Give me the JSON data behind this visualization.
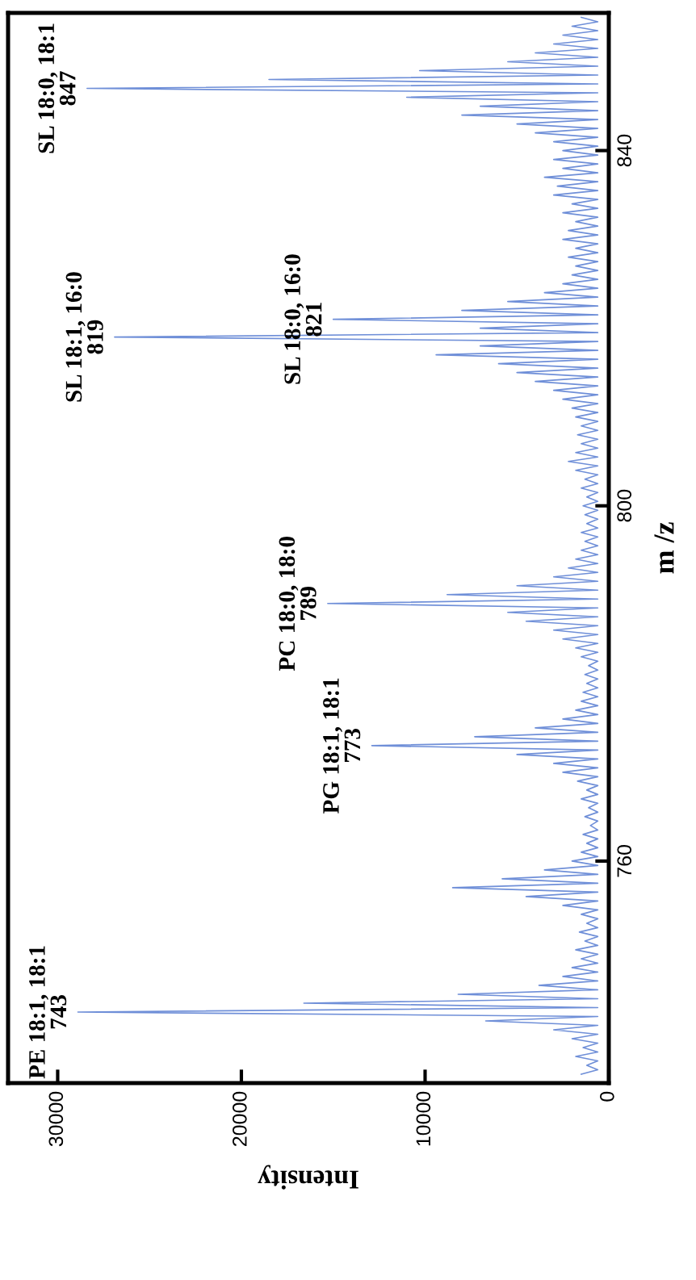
{
  "chart_data": {
    "type": "line",
    "color": "#6f8fd8",
    "xlabel": "Intensity",
    "ylabel": "m /z",
    "xlim": [
      32700,
      0
    ],
    "ylim": [
      735,
      855.5
    ],
    "xticks": [
      0,
      10000,
      20000,
      30000
    ],
    "yticks": [
      760,
      800,
      840
    ],
    "grid": false,
    "values": [
      736,
      736.5,
      737,
      737.5,
      738,
      738.5,
      739,
      739.5,
      740,
      740.5,
      741,
      741.5,
      742,
      742.5,
      743,
      743.5,
      744,
      744.5,
      745,
      745.5,
      746,
      746.5,
      747,
      747.5,
      748,
      748.5,
      749,
      749.5,
      750,
      750.5,
      751,
      751.5,
      752,
      752.5,
      753,
      753.5,
      754,
      754.5,
      755,
      755.5,
      756,
      756.5,
      757,
      757.5,
      758,
      758.5,
      759,
      759.5,
      760,
      760.5,
      761,
      761.5,
      762,
      762.5,
      763,
      763.5,
      764,
      764.5,
      765,
      765.5,
      766,
      766.5,
      767,
      767.5,
      768,
      768.5,
      769,
      769.5,
      770,
      770.5,
      771,
      771.5,
      772,
      772.5,
      773,
      773.5,
      774,
      774.5,
      775,
      775.5,
      776,
      776.5,
      777,
      777.5,
      778,
      778.5,
      779,
      779.5,
      780,
      780.5,
      781,
      781.5,
      782,
      782.5,
      783,
      783.5,
      784,
      784.5,
      785,
      785.5,
      786,
      786.5,
      787,
      787.5,
      788,
      788.5,
      789,
      789.5,
      790,
      790.5,
      791,
      791.5,
      792,
      792.5,
      793,
      793.5,
      794,
      794.5,
      795,
      795.5,
      796,
      796.5,
      797,
      797.5,
      798,
      798.5,
      799,
      799.5,
      800,
      800.5,
      801,
      801.5,
      802,
      802.5,
      803,
      803.5,
      804,
      804.5,
      805,
      805.5,
      806,
      806.5,
      807,
      807.5,
      808,
      808.5,
      809,
      809.5,
      810,
      810.5,
      811,
      811.5,
      812,
      812.5,
      813,
      813.5,
      814,
      814.5,
      815,
      815.5,
      816,
      816.5,
      817,
      817.5,
      818,
      818.5,
      819,
      819.5,
      820,
      820.5,
      821,
      821.5,
      822,
      822.5,
      823,
      823.5,
      824,
      824.5,
      825,
      825.5,
      826,
      826.5,
      827,
      827.5,
      828,
      828.5,
      829,
      829.5,
      830,
      830.5,
      831,
      831.5,
      832,
      832.5,
      833,
      833.5,
      834,
      834.5,
      835,
      835.5,
      836,
      836.5,
      837,
      837.5,
      838,
      838.5,
      839,
      839.5,
      840,
      840.5,
      841,
      841.5,
      842,
      842.5,
      843,
      843.5,
      844,
      844.5,
      845,
      845.5,
      846,
      846.5,
      847,
      847.5,
      848,
      848.5,
      849,
      849.5,
      850,
      850.5,
      851,
      851.5,
      852,
      852.5,
      853,
      853.5,
      854,
      854.5,
      855
    ],
    "x": [
      1500,
      600,
      1200,
      600,
      1800,
      600,
      1400,
      600,
      2000,
      600,
      3000,
      600,
      6700,
      600,
      28900,
      600,
      16600,
      600,
      8200,
      600,
      3800,
      600,
      2500,
      600,
      2000,
      600,
      1500,
      600,
      1800,
      600,
      1300,
      600,
      1600,
      600,
      1200,
      600,
      1500,
      600,
      2500,
      600,
      4500,
      600,
      8500,
      600,
      5800,
      600,
      3500,
      600,
      2000,
      600,
      1500,
      600,
      1200,
      600,
      1400,
      600,
      1000,
      600,
      1300,
      600,
      1100,
      600,
      1500,
      600,
      1200,
      600,
      1700,
      600,
      2500,
      600,
      3000,
      600,
      5000,
      600,
      12900,
      600,
      7300,
      600,
      4000,
      600,
      2500,
      600,
      1800,
      600,
      1500,
      600,
      1400,
      600,
      1200,
      600,
      1300,
      600,
      1100,
      600,
      1500,
      600,
      1800,
      600,
      2500,
      600,
      3000,
      600,
      4500,
      600,
      5500,
      600,
      15300,
      600,
      8800,
      600,
      5000,
      600,
      3000,
      600,
      2200,
      600,
      1800,
      600,
      1500,
      600,
      1300,
      600,
      1500,
      600,
      1200,
      600,
      1300,
      600,
      1400,
      600,
      1200,
      600,
      1500,
      600,
      1300,
      600,
      1800,
      600,
      2200,
      600,
      1800,
      600,
      1500,
      600,
      1700,
      600,
      1500,
      600,
      1800,
      600,
      2000,
      600,
      2500,
      600,
      3000,
      600,
      4000,
      600,
      5000,
      600,
      6000,
      600,
      9400,
      600,
      7000,
      600,
      26900,
      600,
      7000,
      600,
      15000,
      600,
      8000,
      600,
      5500,
      600,
      3500,
      600,
      2500,
      600,
      2000,
      600,
      1800,
      600,
      2200,
      600,
      1800,
      600,
      2500,
      600,
      2200,
      600,
      1800,
      600,
      2500,
      600,
      2000,
      600,
      3000,
      600,
      2800,
      600,
      3500,
      600,
      2500,
      600,
      3000,
      600,
      2500,
      600,
      3000,
      600,
      4000,
      600,
      5000,
      600,
      8000,
      600,
      7000,
      600,
      11000,
      600,
      28400,
      600,
      18500,
      600,
      10300,
      600,
      5500,
      600,
      4000,
      600,
      3000,
      600,
      2500,
      600,
      2000,
      600,
      1500
    ],
    "annotations": [
      {
        "text": "PE 18:1, 18:1\n743",
        "y": 743,
        "x": 28900
      },
      {
        "text": "PG 18:1, 18:1\n773",
        "y": 773,
        "x": 12900
      },
      {
        "text": "PC 18:0, 18:0\n789",
        "y": 789,
        "x": 15300
      },
      {
        "text": "SL 18:1, 16:0\n819",
        "y": 819,
        "x": 26900
      },
      {
        "text": "SL 18:0, 16:0\n821",
        "y": 821,
        "x": 15000
      },
      {
        "text": "SL 18:0, 18:1\n847",
        "y": 847,
        "x": 28400
      }
    ]
  }
}
